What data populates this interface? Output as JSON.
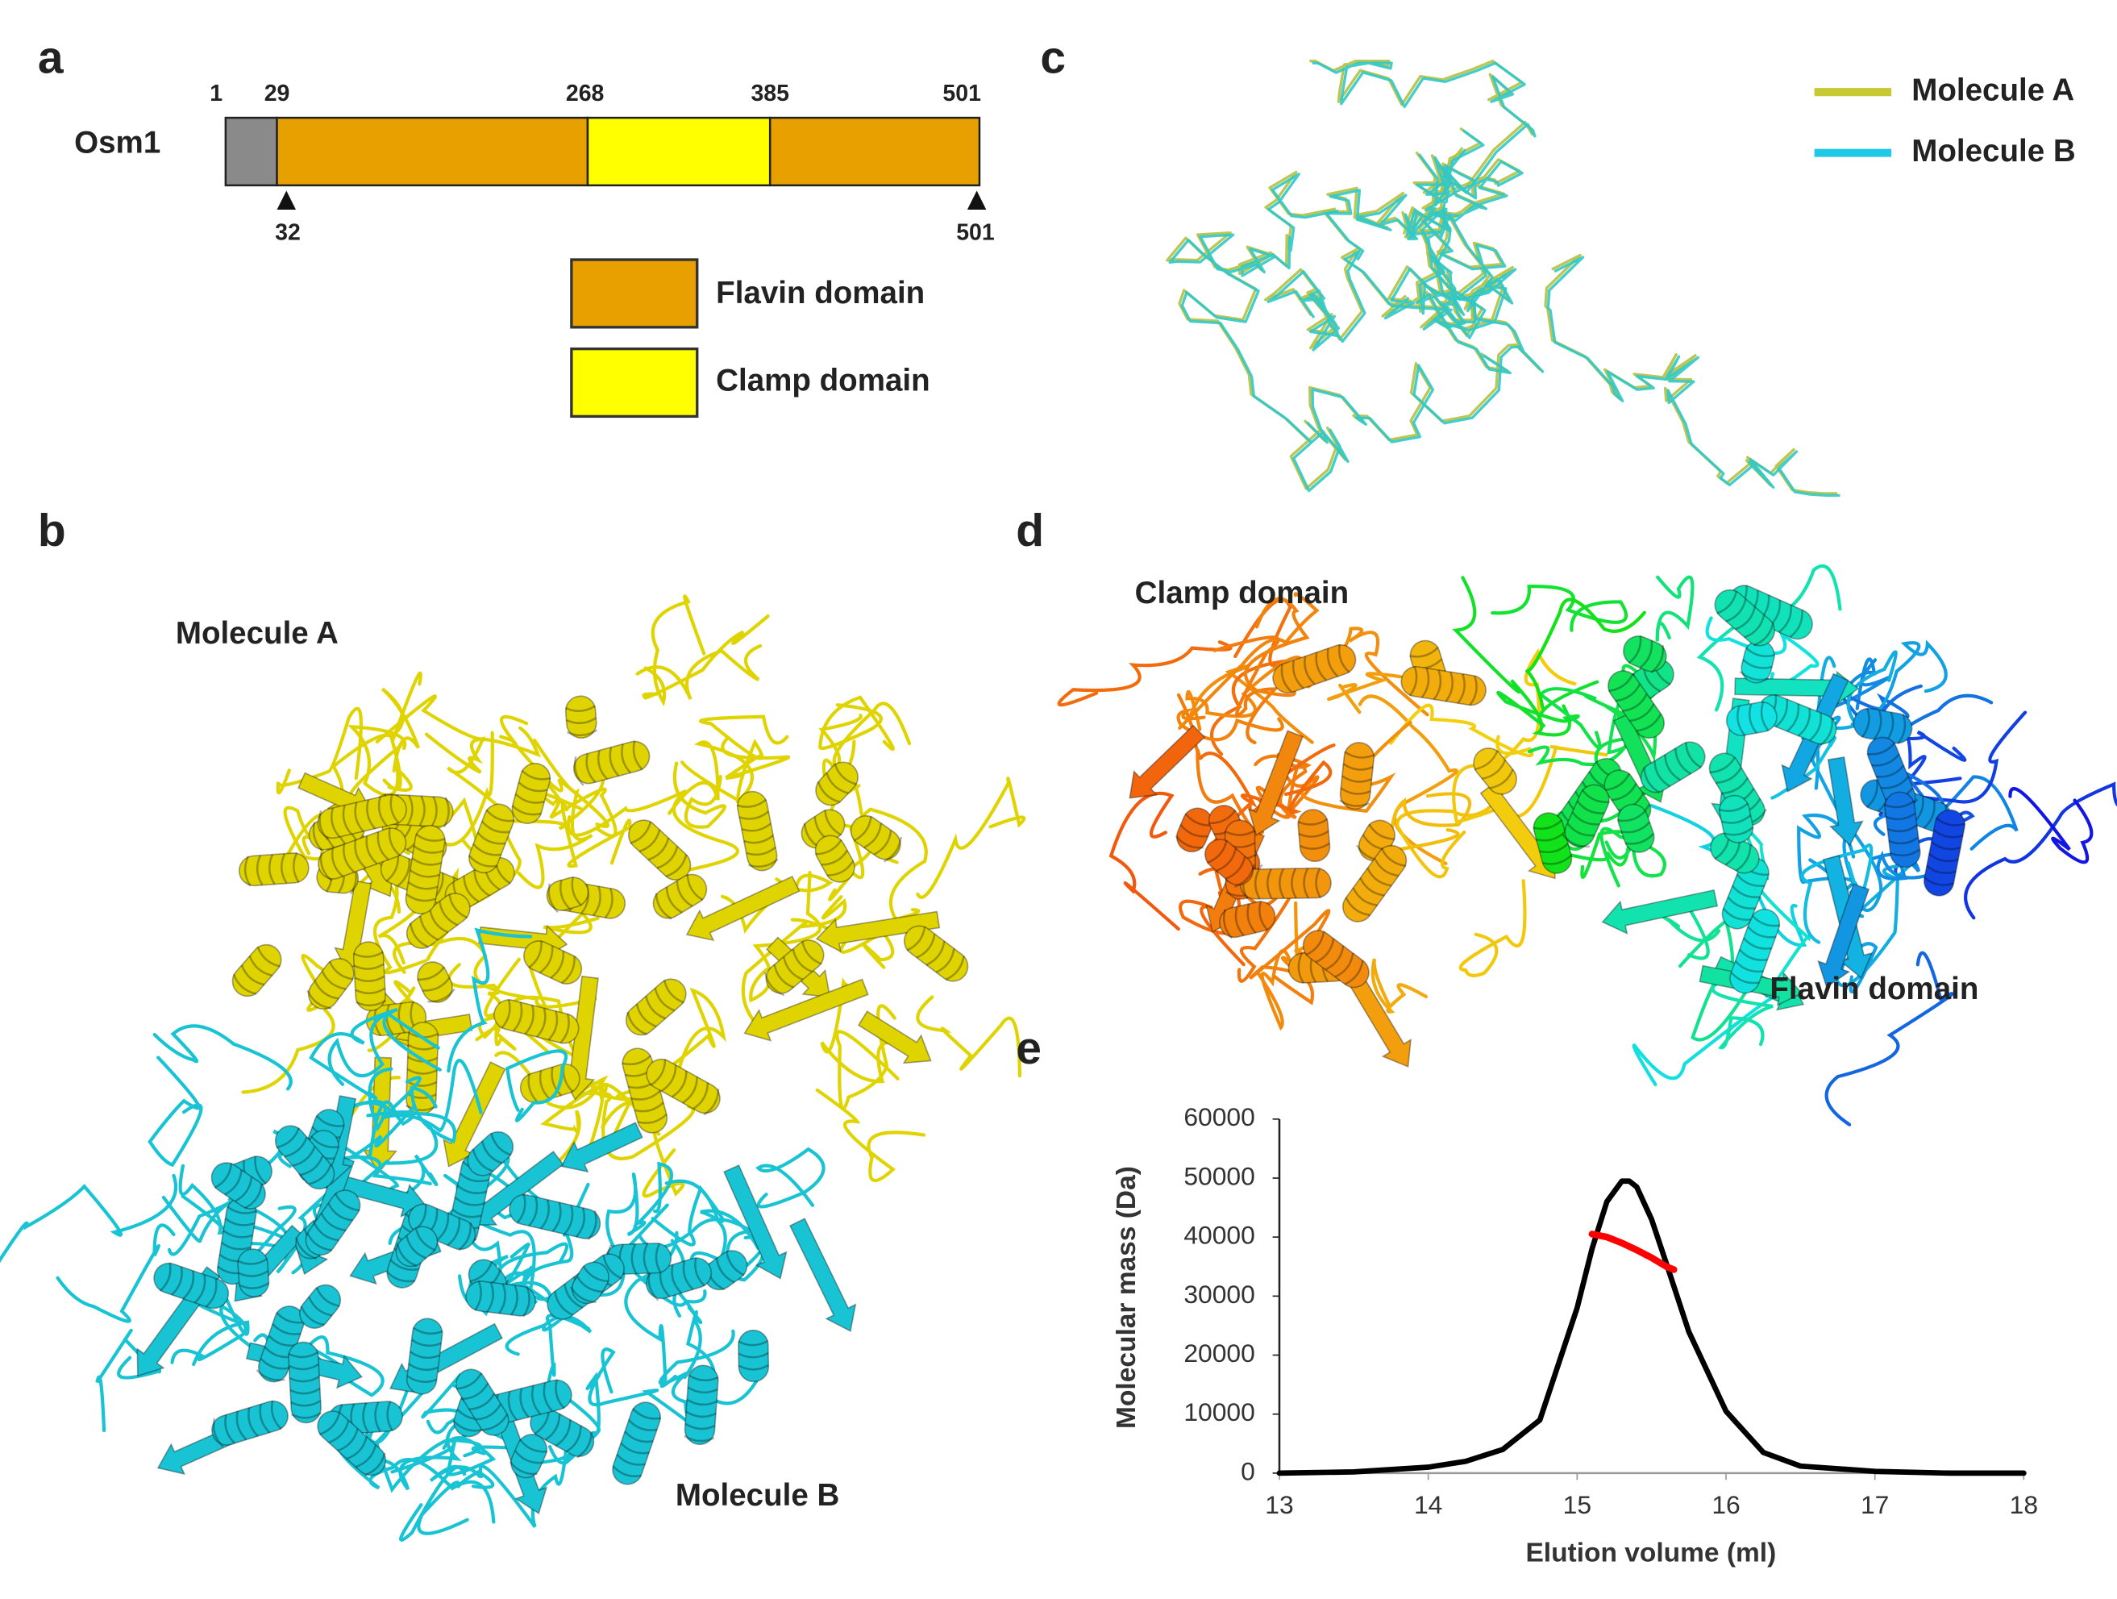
{
  "panel_labels": [
    "a",
    "b",
    "c",
    "d",
    "e"
  ],
  "panel_a": {
    "protein": "Osm1",
    "residues_top": [
      1,
      29,
      268,
      385,
      501
    ],
    "residues_bottom": [
      32,
      501
    ],
    "legend": [
      "Flavin domain",
      "Clamp domain"
    ]
  },
  "panel_b": {
    "labels": [
      "Molecule A",
      "Molecule B"
    ]
  },
  "panel_c": {
    "legend": [
      "Molecule A",
      "Molecule B"
    ]
  },
  "panel_d": {
    "labels": [
      "Clamp domain",
      "Flavin domain"
    ]
  },
  "chart_data": {
    "type": "line",
    "x_label": "Elution volume (ml)",
    "y_label": "Molecular mass (Da)",
    "xlim": [
      13,
      18
    ],
    "ylim": [
      0,
      60000
    ],
    "xticks": [
      13,
      14,
      15,
      16,
      17,
      18
    ],
    "yticks": [
      0,
      10000,
      20000,
      30000,
      40000,
      50000,
      60000
    ],
    "series": [
      {
        "color": "#000000",
        "x": [
          13,
          13.5,
          14,
          14.25,
          14.5,
          14.75,
          15,
          15.1,
          15.2,
          15.3,
          15.35,
          15.4,
          15.5,
          15.6,
          15.75,
          16,
          16.25,
          16.5,
          17,
          17.5,
          18
        ],
        "values": [
          0,
          200,
          1000,
          2000,
          4000,
          9000,
          28000,
          38000,
          46000,
          49500,
          49500,
          48500,
          43000,
          35500,
          24000,
          10500,
          3500,
          1200,
          300,
          0,
          0
        ]
      },
      {
        "color": "#ff0000",
        "x": [
          15.1,
          15.2,
          15.3,
          15.4,
          15.5,
          15.6,
          15.65
        ],
        "values": [
          40500,
          40000,
          39000,
          37800,
          36500,
          35000,
          34500
        ]
      }
    ]
  }
}
